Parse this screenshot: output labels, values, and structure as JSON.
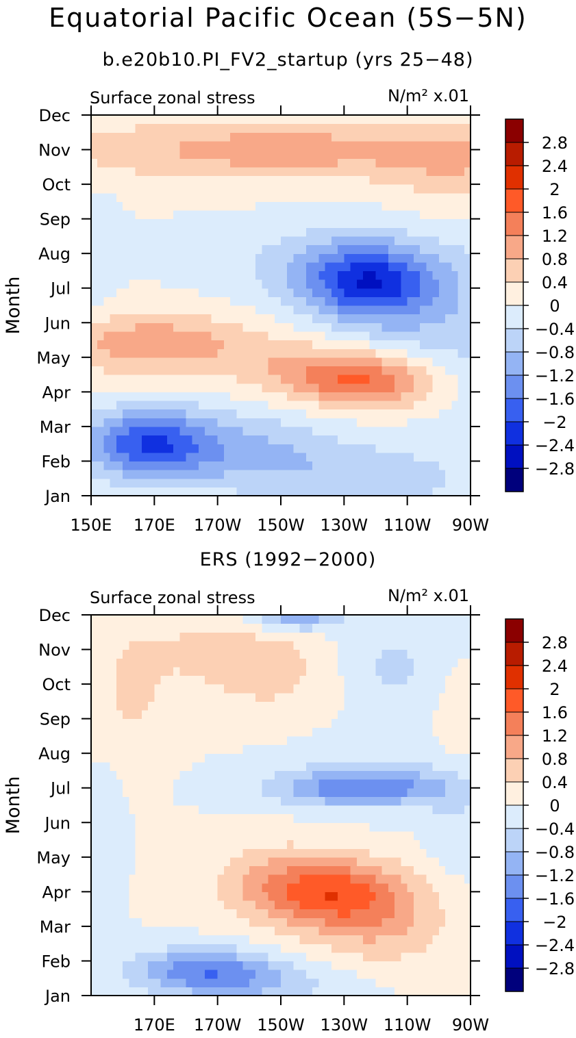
{
  "title": "Equatorial Pacific Ocean (5S−5N)",
  "chart_data": [
    {
      "type": "heatmap",
      "title": "b.e20b10.PI_FV2_startup (yrs 25−48)",
      "left_label": "Surface zonal stress",
      "units_label": "N/m² x.01",
      "ylabel": "Month",
      "xlabel": "",
      "x_range": [
        150,
        270
      ],
      "x_ticks": [
        {
          "value": 150,
          "label": "150E"
        },
        {
          "value": 170,
          "label": "170E"
        },
        {
          "value": 190,
          "label": "170W"
        },
        {
          "value": 210,
          "label": "150W"
        },
        {
          "value": 230,
          "label": "130W"
        },
        {
          "value": 250,
          "label": "110W"
        },
        {
          "value": 270,
          "label": "90W"
        }
      ],
      "y_range": [
        1,
        12
      ],
      "y_ticks": [
        "Jan",
        "Feb",
        "Mar",
        "Apr",
        "May",
        "Jun",
        "Jul",
        "Aug",
        "Sep",
        "Oct",
        "Nov",
        "Dec"
      ],
      "blobs": [
        {
          "lon": 210,
          "month": 11.0,
          "value": 1.0,
          "sx": 70,
          "sy": 0.9
        },
        {
          "lon": 265,
          "month": 10.4,
          "value": 0.5,
          "sx": 20,
          "sy": 1.3
        },
        {
          "lon": 238,
          "month": 7.1,
          "value": -1.9,
          "sx": 20,
          "sy": 1.1
        },
        {
          "lon": 225,
          "month": 7.7,
          "value": -0.6,
          "sx": 32,
          "sy": 1.1
        },
        {
          "lon": 265,
          "month": 6.0,
          "value": -0.6,
          "sx": 28,
          "sy": 2.2
        },
        {
          "lon": 170,
          "month": 5.4,
          "value": 1.1,
          "sx": 32,
          "sy": 0.9
        },
        {
          "lon": 238,
          "month": 4.3,
          "value": 1.6,
          "sx": 22,
          "sy": 0.8
        },
        {
          "lon": 215,
          "month": 4.7,
          "value": 0.6,
          "sx": 22,
          "sy": 0.8
        },
        {
          "lon": 168,
          "month": 2.5,
          "value": -1.9,
          "sx": 20,
          "sy": 1.0
        },
        {
          "lon": 200,
          "month": 2.3,
          "value": -0.8,
          "sx": 28,
          "sy": 1.1
        },
        {
          "lon": 240,
          "month": 1.5,
          "value": -0.6,
          "sx": 35,
          "sy": 1.0
        },
        {
          "lon": 152,
          "month": 8.0,
          "value": -0.4,
          "sx": 6,
          "sy": 1.5
        }
      ]
    },
    {
      "type": "heatmap",
      "title": "ERS (1992−2000)",
      "left_label": "Surface zonal stress",
      "units_label": "N/m² x.01",
      "ylabel": "Month",
      "xlabel": "",
      "x_range": [
        150,
        270
      ],
      "x_ticks": [
        {
          "value": 170,
          "label": "170E"
        },
        {
          "value": 190,
          "label": "170W"
        },
        {
          "value": 210,
          "label": "150W"
        },
        {
          "value": 230,
          "label": "130W"
        },
        {
          "value": 250,
          "label": "110W"
        },
        {
          "value": 270,
          "label": "90W"
        }
      ],
      "y_range": [
        1,
        12
      ],
      "y_ticks": [
        "Jan",
        "Feb",
        "Mar",
        "Apr",
        "May",
        "Jun",
        "Jul",
        "Aug",
        "Sep",
        "Oct",
        "Nov",
        "Dec"
      ],
      "blobs": [
        {
          "lon": 205,
          "month": 10.5,
          "value": 0.6,
          "sx": 22,
          "sy": 1.4
        },
        {
          "lon": 163,
          "month": 10.0,
          "value": 0.5,
          "sx": 12,
          "sy": 2.0
        },
        {
          "lon": 185,
          "month": 11.0,
          "value": 0.4,
          "sx": 14,
          "sy": 0.8
        },
        {
          "lon": 215,
          "month": 12.0,
          "value": -1.3,
          "sx": 14,
          "sy": 0.45
        },
        {
          "lon": 245,
          "month": 10.5,
          "value": -0.5,
          "sx": 16,
          "sy": 1.3
        },
        {
          "lon": 235,
          "month": 7.0,
          "value": -1.3,
          "sx": 28,
          "sy": 0.5
        },
        {
          "lon": 242,
          "month": 7.4,
          "value": -0.4,
          "sx": 30,
          "sy": 1.0
        },
        {
          "lon": 225,
          "month": 4.0,
          "value": 1.7,
          "sx": 24,
          "sy": 1.0
        },
        {
          "lon": 242,
          "month": 3.0,
          "value": 0.7,
          "sx": 22,
          "sy": 1.2
        },
        {
          "lon": 205,
          "month": 4.5,
          "value": 0.4,
          "sx": 20,
          "sy": 1.2
        },
        {
          "lon": 185,
          "month": 1.8,
          "value": -1.3,
          "sx": 22,
          "sy": 0.6
        },
        {
          "lon": 200,
          "month": 1.3,
          "value": -0.7,
          "sx": 30,
          "sy": 0.6
        },
        {
          "lon": 153,
          "month": 6.0,
          "value": -0.3,
          "sx": 6,
          "sy": 1.5
        },
        {
          "lon": 265,
          "month": 8.5,
          "value": 0.3,
          "sx": 6,
          "sy": 2.0
        },
        {
          "lon": 265,
          "month": 6.0,
          "value": -0.4,
          "sx": 8,
          "sy": 1.5
        }
      ]
    }
  ],
  "colorbar": {
    "labels": [
      "2.8",
      "2.4",
      "2",
      "1.6",
      "1.2",
      "0.8",
      "0.4",
      "0",
      "−0.4",
      "−0.8",
      "−1.2",
      "−1.6",
      "−2",
      "−2.4",
      "−2.8"
    ],
    "colors": [
      "#8b0000",
      "#b81c00",
      "#e03000",
      "#ff5a28",
      "#f4805a",
      "#f8a888",
      "#fcd0b4",
      "#fff0e0",
      "#dcecfc",
      "#bcd4f8",
      "#94b4f4",
      "#6c90f0",
      "#3860f0",
      "#1030e0",
      "#0010c0",
      "#00007c"
    ],
    "thresholds": [
      2.8,
      2.4,
      2.0,
      1.6,
      1.2,
      0.8,
      0.4,
      0,
      -0.4,
      -0.8,
      -1.2,
      -1.6,
      -2.0,
      -2.4,
      -2.8
    ]
  }
}
